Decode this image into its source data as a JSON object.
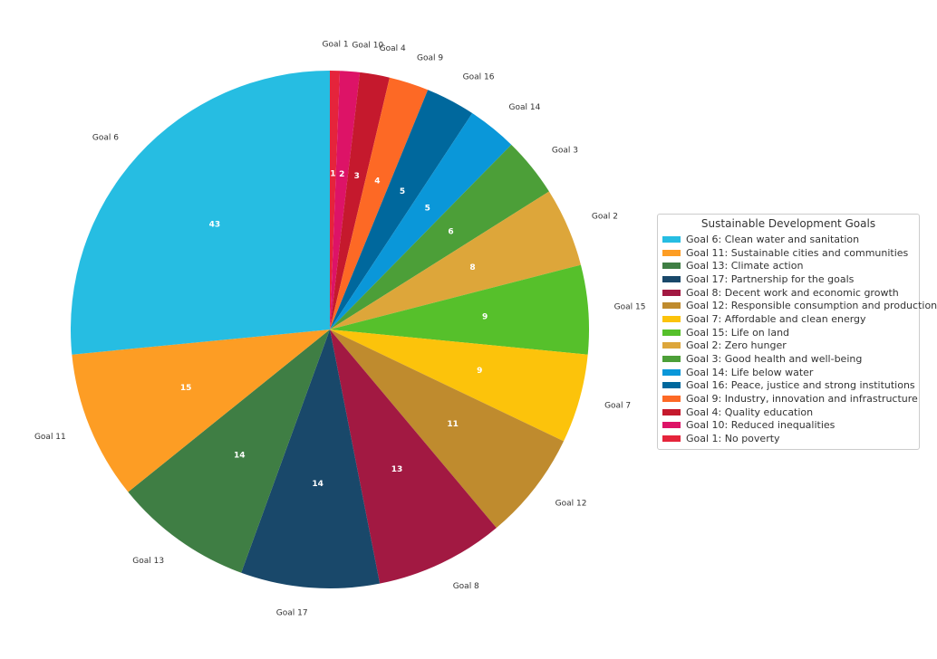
{
  "chart_data": {
    "type": "pie",
    "start_angle_deg": 90,
    "direction": "clockwise",
    "slices": [
      {
        "label": "Goal 1",
        "value": 1,
        "color": "#e5243b"
      },
      {
        "label": "Goal 10",
        "value": 2,
        "color": "#dd1367"
      },
      {
        "label": "Goal 4",
        "value": 3,
        "color": "#c5192d"
      },
      {
        "label": "Goal 9",
        "value": 4,
        "color": "#fd6925"
      },
      {
        "label": "Goal 16",
        "value": 5,
        "color": "#00689d"
      },
      {
        "label": "Goal 14",
        "value": 5,
        "color": "#0a97d9"
      },
      {
        "label": "Goal 3",
        "value": 6,
        "color": "#4c9f38"
      },
      {
        "label": "Goal 2",
        "value": 8,
        "color": "#dda63a"
      },
      {
        "label": "Goal 15",
        "value": 9,
        "color": "#56c02b"
      },
      {
        "label": "Goal 7",
        "value": 9,
        "color": "#fcc30b"
      },
      {
        "label": "Goal 12",
        "value": 11,
        "color": "#bf8b2e"
      },
      {
        "label": "Goal 8",
        "value": 13,
        "color": "#a21942"
      },
      {
        "label": "Goal 17",
        "value": 14,
        "color": "#19486a"
      },
      {
        "label": "Goal 13",
        "value": 14,
        "color": "#3f7e44"
      },
      {
        "label": "Goal 11",
        "value": 15,
        "color": "#fd9d24"
      },
      {
        "label": "Goal 6",
        "value": 43,
        "color": "#26bde2"
      }
    ],
    "legend": {
      "title": "Sustainable Development Goals",
      "placement": "right",
      "entries": [
        {
          "label": "Goal 6: Clean water and sanitation",
          "color": "#26bde2"
        },
        {
          "label": "Goal 11: Sustainable cities and communities",
          "color": "#fd9d24"
        },
        {
          "label": "Goal 13: Climate action",
          "color": "#3f7e44"
        },
        {
          "label": "Goal 17: Partnership for the goals",
          "color": "#19486a"
        },
        {
          "label": "Goal 8: Decent work and economic growth",
          "color": "#a21942"
        },
        {
          "label": "Goal 12: Responsible consumption and production",
          "color": "#bf8b2e"
        },
        {
          "label": "Goal 7: Affordable and clean energy",
          "color": "#fcc30b"
        },
        {
          "label": "Goal 15: Life on land",
          "color": "#56c02b"
        },
        {
          "label": "Goal 2: Zero hunger",
          "color": "#dda63a"
        },
        {
          "label": "Goal 3: Good health and well-being",
          "color": "#4c9f38"
        },
        {
          "label": "Goal 14: Life below water",
          "color": "#0a97d9"
        },
        {
          "label": "Goal 16: Peace, justice and strong institutions",
          "color": "#00689d"
        },
        {
          "label": "Goal 9: Industry, innovation and infrastructure",
          "color": "#fd6925"
        },
        {
          "label": "Goal 4: Quality education",
          "color": "#c5192d"
        },
        {
          "label": "Goal 10: Reduced inequalities",
          "color": "#dd1367"
        },
        {
          "label": "Goal 1: No poverty",
          "color": "#e5243b"
        }
      ]
    }
  }
}
